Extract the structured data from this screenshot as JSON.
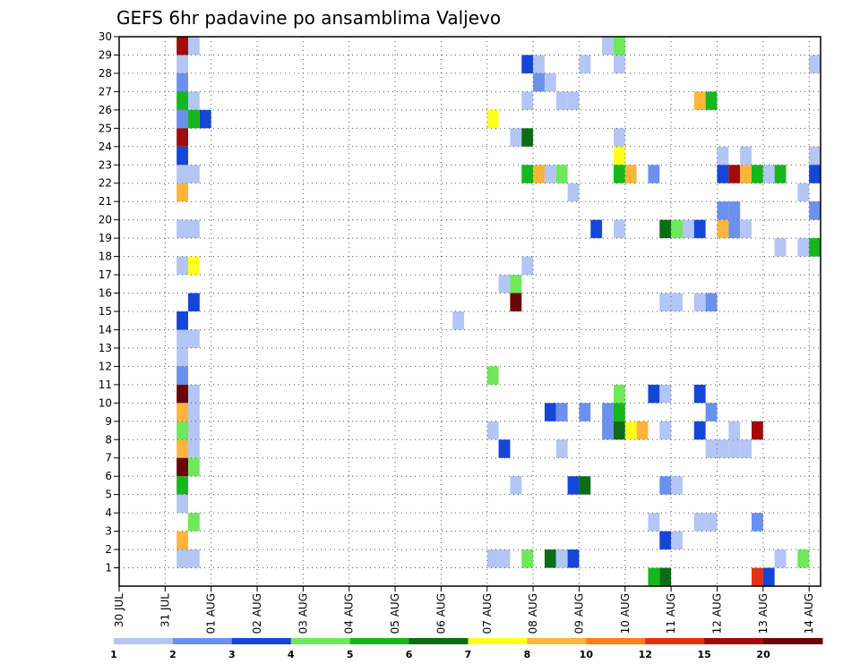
{
  "chart_data": {
    "type": "heatmap",
    "title": "GEFS 6hr padavine po ansamblima Valjevo",
    "xlabel": "",
    "ylabel": "",
    "x_tick_labels": [
      "30 JUL",
      "31 JUL",
      "01 AUG",
      "02 AUG",
      "03 AUG",
      "04 AUG",
      "05 AUG",
      "06 AUG",
      "07 AUG",
      "08 AUG",
      "09 AUG",
      "10 AUG",
      "11 AUG",
      "12 AUG",
      "13 AUG",
      "14 AUG"
    ],
    "y_tick_labels": [
      "1",
      "2",
      "3",
      "4",
      "5",
      "6",
      "7",
      "8",
      "9",
      "10",
      "11",
      "12",
      "13",
      "14",
      "15",
      "16",
      "17",
      "18",
      "19",
      "20",
      "21",
      "22",
      "23",
      "24",
      "25",
      "26",
      "27",
      "28",
      "29",
      "30"
    ],
    "x_range_days": [
      0,
      15.25
    ],
    "steps_per_day": 4,
    "y_range": [
      0,
      30
    ],
    "grid": true,
    "legend_placement": "bottom",
    "levels": [
      "1",
      "2",
      "3",
      "4",
      "5",
      "6",
      "7",
      "8",
      "10",
      "12",
      "15",
      "20"
    ],
    "palette": [
      "#b3c6f5",
      "#6b91ef",
      "#1446d8",
      "#6fe85a",
      "#15b81c",
      "#0b6e14",
      "#ffff1e",
      "#ffb43a",
      "#ff7f19",
      "#e3320e",
      "#a30a0a",
      "#6b0505"
    ],
    "cells": [
      [
        1.25,
        30,
        10
      ],
      [
        1.5,
        30,
        0
      ],
      [
        10.5,
        30,
        0
      ],
      [
        10.75,
        30,
        3
      ],
      [
        1.25,
        29,
        0
      ],
      [
        8.75,
        29,
        2
      ],
      [
        9,
        29,
        0
      ],
      [
        10,
        29,
        0
      ],
      [
        10.75,
        29,
        0
      ],
      [
        15,
        29,
        0
      ],
      [
        1.25,
        28,
        1
      ],
      [
        9,
        28,
        1
      ],
      [
        9.25,
        28,
        0
      ],
      [
        1.25,
        27,
        4
      ],
      [
        1.5,
        27,
        0
      ],
      [
        8.75,
        27,
        0
      ],
      [
        9.5,
        27,
        0
      ],
      [
        9.75,
        27,
        0
      ],
      [
        12.5,
        27,
        7
      ],
      [
        12.75,
        27,
        4
      ],
      [
        1.25,
        26,
        1
      ],
      [
        1.5,
        26,
        4
      ],
      [
        1.75,
        26,
        2
      ],
      [
        8,
        26,
        6
      ],
      [
        1.25,
        25,
        10
      ],
      [
        8.5,
        25,
        0
      ],
      [
        8.75,
        25,
        5
      ],
      [
        10.75,
        25,
        0
      ],
      [
        1.25,
        24,
        2
      ],
      [
        10.75,
        24,
        6
      ],
      [
        13,
        24,
        0
      ],
      [
        13.5,
        24,
        0
      ],
      [
        15,
        24,
        0
      ],
      [
        1.25,
        23,
        0
      ],
      [
        1.5,
        23,
        0
      ],
      [
        8.75,
        23,
        4
      ],
      [
        9,
        23,
        7
      ],
      [
        9.25,
        23,
        0
      ],
      [
        9.5,
        23,
        3
      ],
      [
        10.75,
        23,
        4
      ],
      [
        11,
        23,
        7
      ],
      [
        11.5,
        23,
        1
      ],
      [
        13,
        23,
        2
      ],
      [
        13.25,
        23,
        10
      ],
      [
        13.5,
        23,
        7
      ],
      [
        13.75,
        23,
        4
      ],
      [
        14,
        23,
        0
      ],
      [
        14.25,
        23,
        4
      ],
      [
        15,
        23,
        2
      ],
      [
        1.25,
        22,
        7
      ],
      [
        9.75,
        22,
        0
      ],
      [
        14.75,
        22,
        0
      ],
      [
        13,
        21,
        1
      ],
      [
        13.25,
        21,
        1
      ],
      [
        15,
        21,
        1
      ],
      [
        1.25,
        20,
        0
      ],
      [
        1.5,
        20,
        0
      ],
      [
        10.25,
        20,
        2
      ],
      [
        10.75,
        20,
        0
      ],
      [
        11.75,
        20,
        5
      ],
      [
        12,
        20,
        3
      ],
      [
        12.25,
        20,
        0
      ],
      [
        12.5,
        20,
        2
      ],
      [
        13,
        20,
        7
      ],
      [
        13.25,
        20,
        1
      ],
      [
        13.5,
        20,
        0
      ],
      [
        14.25,
        19,
        0
      ],
      [
        14.75,
        19,
        0
      ],
      [
        15,
        19,
        4
      ],
      [
        1.25,
        18,
        0
      ],
      [
        1.5,
        18,
        6
      ],
      [
        8.75,
        18,
        0
      ],
      [
        8.25,
        17,
        0
      ],
      [
        8.5,
        17,
        3
      ],
      [
        1.5,
        16,
        2
      ],
      [
        8.5,
        16,
        11
      ],
      [
        11.75,
        16,
        0
      ],
      [
        12,
        16,
        0
      ],
      [
        12.5,
        16,
        0
      ],
      [
        12.75,
        16,
        1
      ],
      [
        1.25,
        15,
        2
      ],
      [
        7.25,
        15,
        0
      ],
      [
        1.25,
        14,
        0
      ],
      [
        1.5,
        14,
        0
      ],
      [
        1.25,
        13,
        0
      ],
      [
        1.25,
        12,
        1
      ],
      [
        8,
        12,
        3
      ],
      [
        1.25,
        11,
        11
      ],
      [
        1.5,
        11,
        0
      ],
      [
        10.75,
        11,
        3
      ],
      [
        11.5,
        11,
        2
      ],
      [
        11.75,
        11,
        0
      ],
      [
        12.5,
        11,
        2
      ],
      [
        1.25,
        10,
        7
      ],
      [
        1.5,
        10,
        0
      ],
      [
        9.25,
        10,
        2
      ],
      [
        9.5,
        10,
        1
      ],
      [
        10,
        10,
        1
      ],
      [
        10.5,
        10,
        1
      ],
      [
        10.75,
        10,
        4
      ],
      [
        12.75,
        10,
        1
      ],
      [
        1.25,
        9,
        3
      ],
      [
        1.5,
        9,
        0
      ],
      [
        8,
        9,
        0
      ],
      [
        10.5,
        9,
        1
      ],
      [
        10.75,
        9,
        5
      ],
      [
        11,
        9,
        6
      ],
      [
        11.25,
        9,
        7
      ],
      [
        11.75,
        9,
        0
      ],
      [
        12.5,
        9,
        2
      ],
      [
        13.25,
        9,
        0
      ],
      [
        13.75,
        9,
        10
      ],
      [
        1.25,
        8,
        7
      ],
      [
        1.5,
        8,
        0
      ],
      [
        8.25,
        8,
        2
      ],
      [
        9.5,
        8,
        0
      ],
      [
        12.75,
        8,
        0
      ],
      [
        13,
        8,
        0
      ],
      [
        13.25,
        8,
        0
      ],
      [
        13.5,
        8,
        0
      ],
      [
        1.25,
        7,
        11
      ],
      [
        1.5,
        7,
        3
      ],
      [
        1.25,
        6,
        4
      ],
      [
        8.5,
        6,
        0
      ],
      [
        9.75,
        6,
        2
      ],
      [
        10,
        6,
        5
      ],
      [
        11.75,
        6,
        1
      ],
      [
        12,
        6,
        0
      ],
      [
        1.25,
        5,
        0
      ],
      [
        1.5,
        4,
        3
      ],
      [
        11.5,
        4,
        0
      ],
      [
        12.5,
        4,
        0
      ],
      [
        12.75,
        4,
        0
      ],
      [
        13.75,
        4,
        1
      ],
      [
        1.25,
        3,
        7
      ],
      [
        11.75,
        3,
        2
      ],
      [
        12,
        3,
        0
      ],
      [
        1.25,
        2,
        0
      ],
      [
        1.5,
        2,
        0
      ],
      [
        8,
        2,
        0
      ],
      [
        8.25,
        2,
        0
      ],
      [
        8.75,
        2,
        3
      ],
      [
        9.25,
        2,
        5
      ],
      [
        9.5,
        2,
        0
      ],
      [
        9.75,
        2,
        2
      ],
      [
        14.25,
        2,
        0
      ],
      [
        14.75,
        2,
        3
      ],
      [
        11.5,
        1,
        4
      ],
      [
        11.75,
        1,
        5
      ],
      [
        13.75,
        1,
        9
      ],
      [
        14,
        1,
        2
      ]
    ]
  }
}
